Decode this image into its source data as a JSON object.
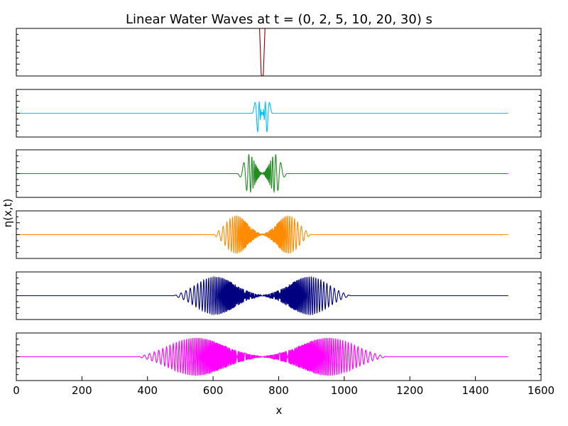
{
  "figure": {
    "title": "Linear Water Waves at t = (0, 2, 5, 10, 20, 30) s",
    "xlabel": "x",
    "ylabel": "η(x,t)"
  },
  "chart_data": {
    "type": "line",
    "title": "Linear Water Waves at t = (0, 2, 5, 10, 20, 30) s",
    "xlabel": "x",
    "ylabel": "η(x,t)",
    "xlim": [
      0,
      1600
    ],
    "xticks": [
      0,
      200,
      400,
      600,
      800,
      1000,
      1200,
      1400,
      1600
    ],
    "x_range_of_data": [
      0,
      1500
    ],
    "center_x": 750,
    "grid": false,
    "legend": "none",
    "layout": "6 stacked subplots sharing x axis, no y tick labels",
    "series": [
      {
        "t": 0,
        "color": "#8B0000",
        "note": "narrow spike at x=750"
      },
      {
        "t": 2,
        "color": "#00BFFF",
        "spread": 30
      },
      {
        "t": 5,
        "color": "#228B22",
        "spread": 75
      },
      {
        "t": 10,
        "color": "#FF8C00",
        "spread": 150
      },
      {
        "t": 20,
        "color": "#000080",
        "spread": 270
      },
      {
        "t": 30,
        "color": "#FF00FF",
        "spread": 380
      }
    ]
  }
}
